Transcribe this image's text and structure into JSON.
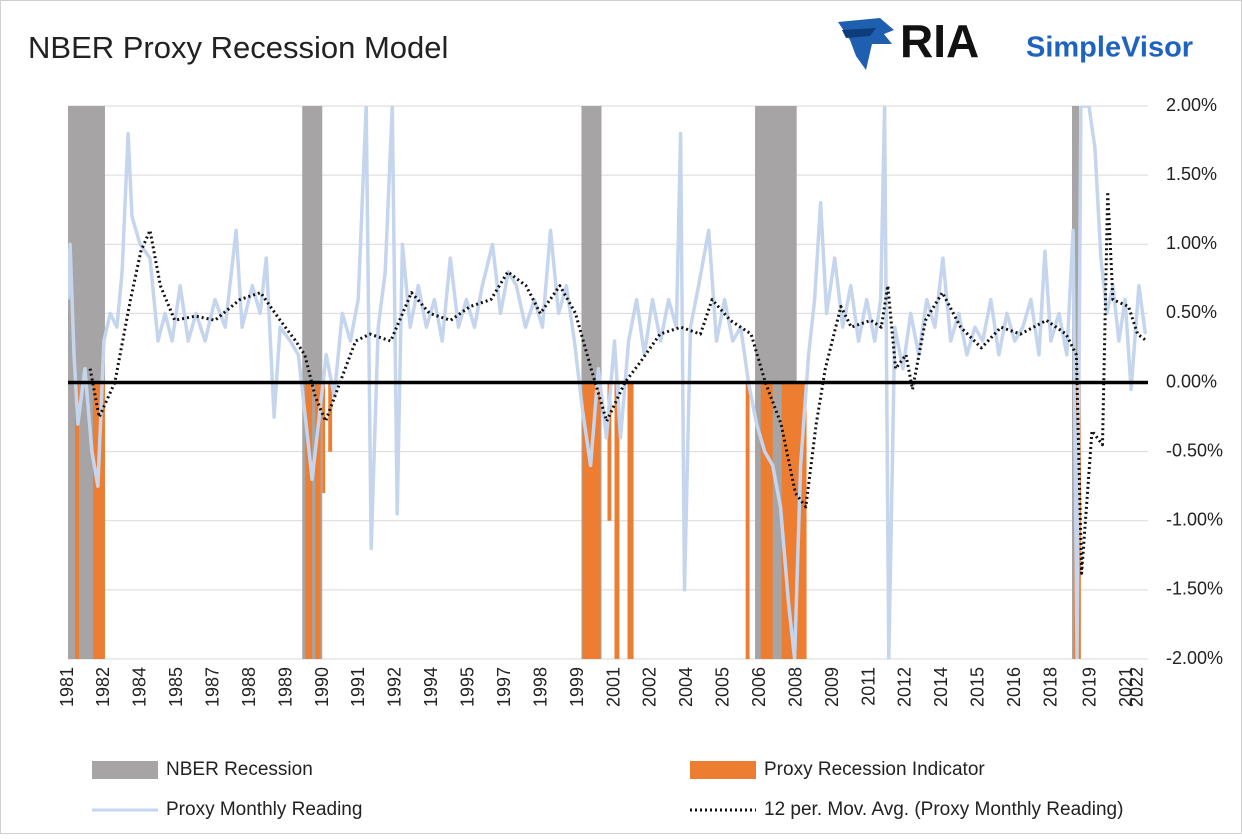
{
  "logo": {
    "brand": "RIA",
    "product": "SimpleVisor"
  },
  "chart_data": {
    "type": "line",
    "title": "NBER Proxy Recession Model",
    "xlim": [
      1981,
      2022.5
    ],
    "ylim": [
      -2,
      2
    ],
    "grid": true,
    "legend": "bottom",
    "yticks": [
      {
        "value": 2,
        "label": "2.00%"
      },
      {
        "value": 1.5,
        "label": "1.50%"
      },
      {
        "value": 1,
        "label": "1.00%"
      },
      {
        "value": 0.5,
        "label": "0.50%"
      },
      {
        "value": 0,
        "label": "0.00%"
      },
      {
        "value": -0.5,
        "label": "-0.50%"
      },
      {
        "value": -1,
        "label": "-1.00%"
      },
      {
        "value": -1.5,
        "label": "-1.50%"
      },
      {
        "value": -2,
        "label": "-2.00%"
      }
    ],
    "xticks": [
      1981,
      {
        "value": 1982.4,
        "label": "1982"
      },
      {
        "value": 1983.8,
        "label": "1984"
      },
      {
        "value": 1985.2,
        "label": "1985"
      },
      {
        "value": 1986.6,
        "label": "1987"
      },
      1988,
      {
        "value": 1989.4,
        "label": "1989"
      },
      {
        "value": 1990.8,
        "label": "1990"
      },
      {
        "value": 1992.2,
        "label": "1991"
      },
      {
        "value": 1993.6,
        "label": "1992"
      },
      {
        "value": 1995.0,
        "label": "1994"
      },
      {
        "value": 1996.4,
        "label": "1995"
      },
      {
        "value": 1997.8,
        "label": "1997"
      },
      {
        "value": 1999.2,
        "label": "1998"
      },
      {
        "value": 2000.6,
        "label": "1999"
      },
      {
        "value": 2002.0,
        "label": "2001"
      },
      {
        "value": 2003.4,
        "label": "2002"
      },
      {
        "value": 2004.8,
        "label": "2004"
      },
      {
        "value": 2006.2,
        "label": "2005"
      },
      {
        "value": 2007.6,
        "label": "2006"
      },
      {
        "value": 2009.0,
        "label": "2008"
      },
      {
        "value": 2010.4,
        "label": "2009"
      },
      {
        "value": 2011.8,
        "label": "2011"
      },
      {
        "value": 2013.2,
        "label": "2012"
      },
      {
        "value": 2014.6,
        "label": "2014"
      },
      {
        "value": 2016.0,
        "label": "2015"
      },
      {
        "value": 2017.4,
        "label": "2016"
      },
      {
        "value": 2018.8,
        "label": "2018"
      },
      {
        "value": 2020.3,
        "label": "2019"
      },
      {
        "value": 2021.7,
        "label": "2021"
      },
      {
        "value": 2022.1,
        "label": "2022"
      }
    ],
    "recessions": {
      "name": "NBER Recession",
      "color": "#a6a4a4",
      "x": [
        1981.0,
        1990.0,
        2000.73,
        2007.4,
        2019.58
      ],
      "x2": [
        1982.42,
        1990.77,
        2001.5,
        2009.0,
        2019.85
      ]
    },
    "indicator": {
      "name": "Proxy Recession Indicator",
      "color": "#ed7d31",
      "x": [
        1981.27,
        1981.96,
        1990.12,
        1990.5,
        1990.77,
        1991.0,
        2000.77,
        2001.73,
        2002.0,
        2002.5,
        2007.04,
        2007.62,
        2008.42,
        2019.65
      ],
      "x2": [
        1981.42,
        1982.42,
        1990.38,
        1990.7,
        1990.88,
        1991.15,
        2001.46,
        2001.88,
        2002.19,
        2002.73,
        2007.19,
        2008.08,
        2009.38,
        2019.92
      ],
      "values": [
        -2,
        -2,
        -2,
        -2,
        -0.8,
        -0.5,
        -2,
        -1.0,
        -2,
        -2,
        -2,
        -2,
        -2,
        -2
      ]
    },
    "series": [
      {
        "name": "Proxy Monthly Reading",
        "color": "#c5d5ee",
        "style": "solid",
        "x": [
          1981.0,
          1981.08,
          1981.23,
          1981.38,
          1981.65,
          1981.92,
          1982.15,
          1982.38,
          1982.62,
          1982.88,
          1983.08,
          1983.31,
          1983.46,
          1983.77,
          1984.15,
          1984.46,
          1984.73,
          1985.0,
          1985.31,
          1985.62,
          1985.92,
          1986.27,
          1986.65,
          1987.04,
          1987.46,
          1987.69,
          1988.08,
          1988.38,
          1988.62,
          1988.92,
          1989.15,
          1989.54,
          1989.85,
          1990.15,
          1990.38,
          1990.62,
          1990.92,
          1991.23,
          1991.54,
          1991.85,
          1992.15,
          1992.46,
          1992.65,
          1992.92,
          1993.19,
          1993.46,
          1993.65,
          1993.85,
          1994.15,
          1994.46,
          1994.77,
          1995.08,
          1995.38,
          1995.69,
          1996.0,
          1996.31,
          1996.62,
          1996.92,
          1997.31,
          1997.62,
          1997.92,
          1998.23,
          1998.58,
          1998.92,
          1999.23,
          1999.54,
          1999.85,
          2000.15,
          2000.46,
          2000.77,
          2001.08,
          2001.38,
          2001.69,
          2002.0,
          2002.23,
          2002.54,
          2002.85,
          2003.15,
          2003.46,
          2003.77,
          2004.08,
          2004.38,
          2004.54,
          2004.69,
          2004.92,
          2005.23,
          2005.62,
          2005.92,
          2006.23,
          2006.54,
          2006.85,
          2007.15,
          2007.46,
          2007.77,
          2008.08,
          2008.38,
          2008.69,
          2008.92,
          2009.15,
          2009.46,
          2009.69,
          2009.92,
          2010.15,
          2010.46,
          2010.77,
          2011.08,
          2011.38,
          2011.69,
          2012.0,
          2012.23,
          2012.38,
          2012.54,
          2012.77,
          2013.08,
          2013.38,
          2013.69,
          2014.0,
          2014.31,
          2014.62,
          2014.92,
          2015.23,
          2015.54,
          2015.85,
          2016.15,
          2016.46,
          2016.77,
          2017.08,
          2017.38,
          2017.69,
          2018.0,
          2018.31,
          2018.54,
          2018.77,
          2019.08,
          2019.38,
          2019.62,
          2019.77,
          2019.92,
          2020.23,
          2020.46,
          2020.69,
          2020.92,
          2021.15,
          2021.38,
          2021.62,
          2021.85,
          2022.15,
          2022.4
        ],
        "values": [
          0.6,
          1.0,
          0.2,
          -0.3,
          0.1,
          -0.5,
          -0.75,
          0.3,
          0.5,
          0.4,
          0.8,
          1.8,
          1.2,
          1.0,
          0.9,
          0.3,
          0.5,
          0.3,
          0.7,
          0.3,
          0.5,
          0.3,
          0.6,
          0.4,
          1.1,
          0.4,
          0.7,
          0.5,
          0.9,
          -0.25,
          0.4,
          0.3,
          0.2,
          -0.3,
          -0.7,
          -0.3,
          0.2,
          -0.1,
          0.5,
          0.3,
          0.6,
          2.0,
          -1.2,
          0.4,
          0.8,
          2.0,
          -0.95,
          1.0,
          0.4,
          0.7,
          0.4,
          0.6,
          0.3,
          0.9,
          0.4,
          0.6,
          0.4,
          0.7,
          1.0,
          0.5,
          0.8,
          0.7,
          0.4,
          0.6,
          0.4,
          1.1,
          0.5,
          0.7,
          0.3,
          -0.2,
          -0.6,
          0.1,
          -0.4,
          0.3,
          -0.4,
          0.3,
          0.6,
          0.2,
          0.6,
          0.3,
          0.6,
          0.4,
          1.8,
          -1.5,
          0.4,
          0.7,
          1.1,
          0.3,
          0.6,
          0.3,
          0.4,
          0.0,
          -0.3,
          -0.5,
          -0.6,
          -0.9,
          -1.6,
          -2.0,
          -0.6,
          0.2,
          0.6,
          1.3,
          0.5,
          0.9,
          0.4,
          0.7,
          0.3,
          0.6,
          0.3,
          0.6,
          2.0,
          -2.0,
          0.4,
          0.1,
          0.5,
          0.2,
          0.6,
          0.4,
          0.9,
          0.3,
          0.5,
          0.2,
          0.4,
          0.3,
          0.6,
          0.2,
          0.5,
          0.3,
          0.4,
          0.6,
          0.2,
          0.95,
          0.3,
          0.5,
          0.2,
          1.1,
          -2.0,
          2.0,
          2.0,
          1.7,
          0.9,
          0.5,
          0.7,
          0.3,
          0.6,
          -0.05,
          0.7,
          0.35
        ]
      },
      {
        "name": "12 per. Mov. Avg. (Proxy Monthly Reading)",
        "color": "#111111",
        "style": "dotted",
        "x": [
          1981.85,
          1982.2,
          1982.8,
          1983.4,
          1983.8,
          1984.15,
          1984.55,
          1985.1,
          1985.9,
          1986.65,
          1987.6,
          1988.4,
          1989.15,
          1989.75,
          1990.1,
          1990.5,
          1990.9,
          1991.45,
          1992.05,
          1992.6,
          1993.4,
          1994.2,
          1994.9,
          1995.7,
          1996.45,
          1997.25,
          1997.9,
          1998.6,
          1999.15,
          1999.9,
          2000.5,
          2001.1,
          2001.7,
          2002.4,
          2003.0,
          2003.75,
          2004.55,
          2005.3,
          2005.75,
          2006.45,
          2007.25,
          2007.8,
          2008.4,
          2008.95,
          2009.35,
          2009.75,
          2010.1,
          2010.7,
          2011.1,
          2011.85,
          2012.25,
          2012.5,
          2012.8,
          2013.2,
          2013.45,
          2013.95,
          2014.6,
          2015.3,
          2016.1,
          2016.85,
          2017.6,
          2018.6,
          2019.35,
          2019.75,
          2019.95,
          2020.35,
          2020.75,
          2020.95,
          2021.15,
          2021.75,
          2022.1,
          2022.45
        ],
        "values": [
          0.1,
          -0.25,
          0.0,
          0.6,
          0.95,
          1.1,
          0.7,
          0.45,
          0.48,
          0.45,
          0.6,
          0.65,
          0.45,
          0.3,
          0.2,
          -0.1,
          -0.28,
          0.0,
          0.3,
          0.35,
          0.3,
          0.65,
          0.5,
          0.45,
          0.55,
          0.6,
          0.8,
          0.7,
          0.5,
          0.7,
          0.5,
          0.1,
          -0.28,
          0.0,
          0.15,
          0.35,
          0.4,
          0.35,
          0.6,
          0.45,
          0.35,
          0.0,
          -0.3,
          -0.8,
          -0.9,
          -0.3,
          0.1,
          0.55,
          0.4,
          0.45,
          0.4,
          0.7,
          0.1,
          0.2,
          -0.05,
          0.45,
          0.65,
          0.4,
          0.25,
          0.4,
          0.35,
          0.45,
          0.35,
          0.2,
          -1.38,
          -0.35,
          -0.45,
          1.38,
          0.6,
          0.55,
          0.35,
          0.3
        ]
      }
    ]
  }
}
